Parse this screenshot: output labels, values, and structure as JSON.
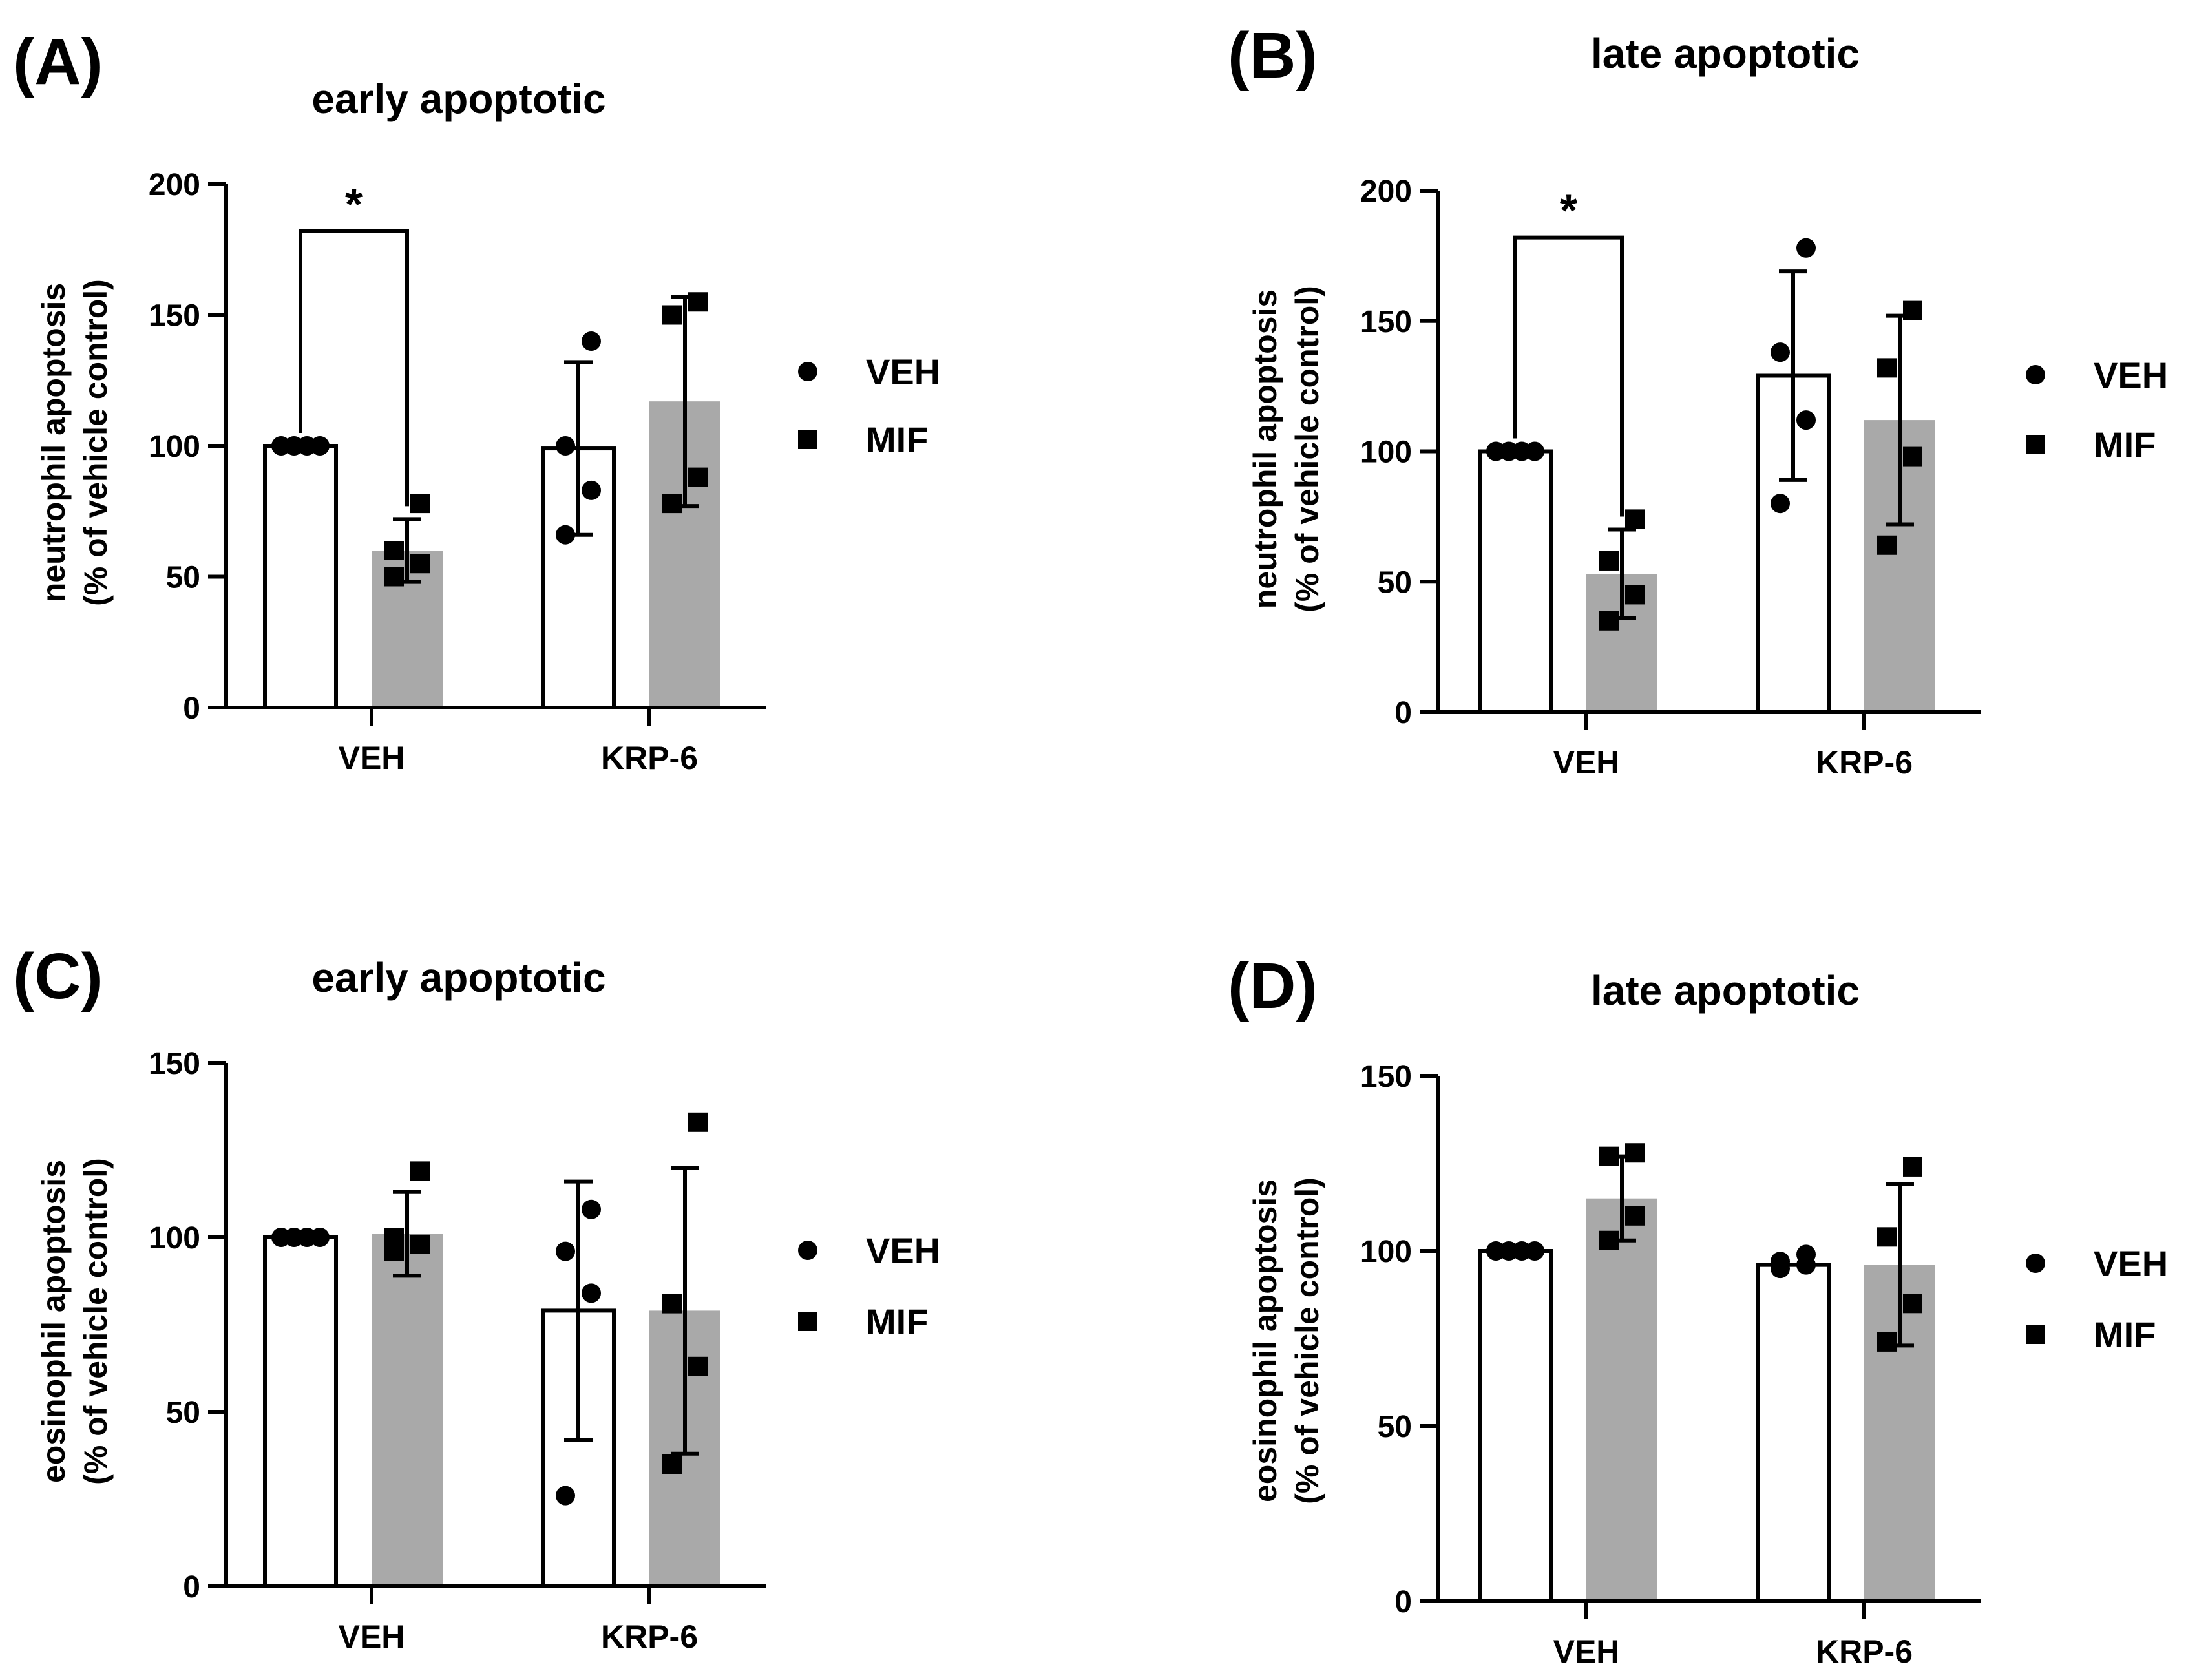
{
  "legend": {
    "veh_label": "VEH",
    "mif_label": "MIF"
  },
  "colors": {
    "veh_fill": "#ffffff",
    "mif_fill": "#a9a9a9",
    "ink": "#000000"
  },
  "chart_data": [
    {
      "panel_label": "(A)",
      "type": "bar",
      "title": "early apoptotic",
      "ylabel": [
        "neutrophil apoptosis",
        "(% of vehicle control)"
      ],
      "ylim": [
        0,
        200
      ],
      "yticks": [
        0,
        50,
        100,
        150,
        200
      ],
      "categories": [
        "VEH",
        "KRP-6"
      ],
      "series": [
        {
          "name": "VEH",
          "values": [
            100,
            99
          ],
          "sd": [
            0,
            33
          ],
          "points": [
            [
              100,
              100,
              100,
              100
            ],
            [
              66,
              83,
              100,
              140
            ]
          ]
        },
        {
          "name": "MIF",
          "values": [
            60,
            117
          ],
          "sd": [
            12,
            40
          ],
          "points": [
            [
              50,
              55,
              60,
              78
            ],
            [
              78,
              88,
              150,
              155
            ]
          ]
        }
      ],
      "significance": {
        "groups": [
          0,
          0
        ],
        "label": "*",
        "y": 182
      },
      "legend_position": "right"
    },
    {
      "panel_label": "(B)",
      "type": "bar",
      "title": "late apoptotic",
      "ylabel": [
        "neutrophil apoptosis",
        "(% of vehicle control)"
      ],
      "ylim": [
        0,
        200
      ],
      "yticks": [
        0,
        50,
        100,
        150,
        200
      ],
      "categories": [
        "VEH",
        "KRP-6"
      ],
      "series": [
        {
          "name": "VEH",
          "values": [
            100,
            129
          ],
          "sd": [
            0,
            40
          ],
          "points": [
            [
              100,
              100,
              100,
              100
            ],
            [
              80,
              112,
              138,
              178
            ]
          ]
        },
        {
          "name": "MIF",
          "values": [
            53,
            112
          ],
          "sd": [
            17,
            40
          ],
          "points": [
            [
              35,
              45,
              58,
              74
            ],
            [
              64,
              98,
              132,
              154
            ]
          ]
        }
      ],
      "significance": {
        "groups": [
          0,
          0
        ],
        "label": "*",
        "y": 182
      },
      "legend_position": "right"
    },
    {
      "panel_label": "(C)",
      "type": "bar",
      "title": "early apoptotic",
      "ylabel": [
        "eosinophil apoptosis",
        "(% of vehicle control)"
      ],
      "ylim": [
        0,
        150
      ],
      "yticks": [
        0,
        50,
        100,
        150
      ],
      "categories": [
        "VEH",
        "KRP-6"
      ],
      "series": [
        {
          "name": "VEH",
          "values": [
            100,
            79
          ],
          "sd": [
            0,
            37
          ],
          "points": [
            [
              100,
              100,
              100,
              100
            ],
            [
              26,
              84,
              96,
              108
            ]
          ]
        },
        {
          "name": "MIF",
          "values": [
            101,
            79
          ],
          "sd": [
            12,
            41
          ],
          "points": [
            [
              96,
              98,
              100,
              119
            ],
            [
              35,
              63,
              81,
              133
            ]
          ]
        }
      ],
      "legend_position": "right"
    },
    {
      "panel_label": "(D)",
      "type": "bar",
      "title": "late apoptotic",
      "ylabel": [
        "eosinophil apoptosis",
        "(% of vehicle control)"
      ],
      "ylim": [
        0,
        150
      ],
      "yticks": [
        0,
        50,
        100,
        150
      ],
      "categories": [
        "VEH",
        "KRP-6"
      ],
      "series": [
        {
          "name": "VEH",
          "values": [
            100,
            96
          ],
          "sd": [
            0,
            0
          ],
          "points": [
            [
              100,
              100,
              100,
              100
            ],
            [
              95,
              96,
              97,
              99
            ]
          ]
        },
        {
          "name": "MIF",
          "values": [
            115,
            96
          ],
          "sd": [
            12,
            23
          ],
          "points": [
            [
              103,
              110,
              127,
              128
            ],
            [
              74,
              85,
              104,
              124
            ]
          ]
        }
      ],
      "legend_position": "right"
    }
  ]
}
